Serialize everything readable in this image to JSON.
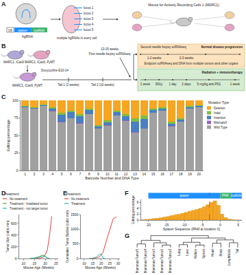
{
  "diagrams": {
    "A": {
      "panel": "A",
      "promoter": "U6",
      "spacer": "spacer",
      "scaffold": "scaffold",
      "construct": "hgRNA",
      "loci": [
        "locus 1",
        "locus 2",
        "locus 3",
        "locus 4",
        "locus 5"
      ],
      "cells": "multiple hgRNAs in every cell",
      "mouse": "Mouse for Actively Recording Cells 1 (MARC1)"
    },
    "B": {
      "panel": "B",
      "parents": [
        "MARC1, iCas9",
        "MARC1, iCas9, PyMT"
      ],
      "offspring": "MARC1, iCas9, PyMT",
      "induction": "Doxycycline E10-14",
      "tails": [
        "Tail 1 (2 weeks)",
        "Tail 2 (10 weeks)"
      ],
      "biopsy_age": "13-15 weeks",
      "biopsy": "First needle biopsy scRNAseq",
      "normal": {
        "title": "Normal disease progression",
        "second": "Second needle biopsy scRNAseq",
        "intervals": [
          "1-2 weeks",
          "2-3 weeks"
        ],
        "endpoint": "Endpoint scRNAseq and DNA from multiple tumors and other organs"
      },
      "treated": {
        "title": "Radiation + immunotherapy",
        "steps": [
          "1 week",
          "30Gy",
          "1 day",
          "2 days",
          "5 mg/kg anti-PD1",
          "1 week"
        ]
      }
    }
  },
  "chart_data": [
    {
      "panel": "C",
      "type": "bar",
      "stacked": true,
      "x_label": "Barcode Number and DNA Type",
      "y_label": "Editing percentage",
      "legend_title": "Mutation Type",
      "legend": "right",
      "categories": [
        "1",
        "2",
        "3",
        "4",
        "5",
        "6",
        "7",
        "8",
        "9",
        "10",
        "11",
        "12",
        "13",
        "14",
        "15",
        "16",
        "17",
        "18",
        "19",
        "20"
      ],
      "series": [
        {
          "name": "Deletion",
          "color": "#f5a623",
          "values": [
            8,
            10,
            6,
            10,
            18,
            15,
            20,
            12,
            35,
            28,
            15,
            20,
            25,
            22,
            12,
            10,
            30,
            25,
            8,
            7
          ]
        },
        {
          "name": "Indel",
          "color": "#7fbf3f",
          "values": [
            1,
            1,
            1,
            2,
            3,
            2,
            3,
            2,
            2,
            3,
            2,
            3,
            5,
            4,
            2,
            2,
            3,
            2,
            2,
            1
          ]
        },
        {
          "name": "Insertion",
          "color": "#4a7fc1",
          "values": [
            1,
            1,
            1,
            3,
            9,
            8,
            9,
            6,
            3,
            4,
            5,
            5,
            15,
            14,
            4,
            3,
            3,
            3,
            2,
            2
          ]
        },
        {
          "name": "Mismatch",
          "color": "#9467bd",
          "values": [
            0,
            0,
            0,
            1,
            1,
            0,
            1,
            0,
            0,
            1,
            0,
            1,
            1,
            0,
            0,
            0,
            1,
            0,
            0,
            0
          ]
        },
        {
          "name": "Wild Type",
          "color": "#a0a0a0",
          "values": [
            90,
            88,
            92,
            84,
            69,
            75,
            67,
            80,
            60,
            64,
            78,
            71,
            54,
            60,
            82,
            85,
            63,
            70,
            88,
            90
          ]
        }
      ],
      "ylim": [
        0,
        100
      ],
      "yticks": [
        0,
        25,
        50,
        75,
        100
      ]
    },
    {
      "panel": "D",
      "type": "line",
      "x_label": "Mouse Age (Weeks)",
      "y_label": "Tumor Size (cubic mm)",
      "legend_title": "Treatment",
      "legend": "top",
      "series": [
        {
          "name": "No treatment",
          "color": "#e8403a",
          "x": [
            13,
            15,
            17,
            19,
            20,
            21,
            22,
            23
          ],
          "values": [
            0,
            0,
            5,
            20,
            60,
            150,
            400,
            720
          ]
        },
        {
          "name": "Treatment - irradiated tumor",
          "color": "#5aab3c",
          "x": [
            13,
            15,
            17,
            19,
            20,
            21,
            22
          ],
          "values": [
            0,
            10,
            30,
            60,
            40,
            10,
            0
          ]
        },
        {
          "name": "Treatment - not target tumor",
          "color": "#2bb3b1",
          "x": [
            13,
            15,
            17,
            19,
            20,
            21,
            22
          ],
          "values": [
            0,
            5,
            20,
            45,
            30,
            5,
            0
          ]
        }
      ],
      "xlim": [
        8,
        26
      ],
      "xticks": [
        10,
        15,
        20,
        25
      ],
      "ylim": [
        0,
        750
      ],
      "yticks": [
        0,
        200,
        400,
        600
      ]
    },
    {
      "panel": "E",
      "type": "line",
      "x_label": "Mouse Age (Weeks)",
      "y_label": "Cumulative Tumor Burden (cubic mm)",
      "legend_title": "Treatment",
      "legend": "top",
      "series": [
        {
          "name": "No treatment",
          "color": "#e8403a",
          "x": [
            13,
            15,
            17,
            19,
            21,
            23,
            25,
            27,
            29
          ],
          "values": [
            0,
            5,
            20,
            60,
            200,
            600,
            1000,
            1350,
            1420
          ]
        },
        {
          "name": "Treatment",
          "color": "#2bb3b1",
          "x": [
            13,
            15,
            17,
            19,
            20,
            21,
            22
          ],
          "values": [
            0,
            10,
            50,
            140,
            150,
            20,
            0
          ]
        }
      ],
      "xlim": [
        8,
        31
      ],
      "xticks": [
        10,
        15,
        20,
        25,
        30
      ],
      "ylim": [
        0,
        1500
      ],
      "yticks": [
        0,
        500,
        1000,
        1500
      ]
    },
    {
      "panel": "F",
      "type": "histogram",
      "x_label": "Spacer Sequence (PAM at location 0)",
      "y_label": "Editing percentage",
      "color": "#f5a623",
      "bins": [
        -22,
        -21,
        -20,
        -19,
        -18,
        -17,
        -16,
        -15,
        -14,
        -13,
        -12,
        -11,
        -10,
        -9,
        -8,
        -7,
        -6,
        -5,
        -4,
        -3,
        -2,
        -1,
        0,
        1,
        2,
        3,
        4,
        5,
        6
      ],
      "values": [
        0.1,
        0.2,
        0.3,
        0.5,
        0.6,
        0.8,
        1.0,
        1.2,
        1.5,
        1.8,
        2.0,
        2.3,
        2.6,
        3.0,
        3.3,
        3.6,
        4.0,
        4.5,
        5.2,
        6.0,
        6.5,
        5.0,
        2.0,
        0.8,
        0.3,
        0.1,
        0.05,
        0
      ],
      "cut_site": -3,
      "regions": [
        {
          "label": "spacer",
          "start": -20,
          "end": 0,
          "color": "#1e90ff"
        },
        {
          "label": "PAM",
          "start": 0,
          "end": 3,
          "color": "#3cb371"
        },
        {
          "label": "scaffold",
          "start": 3,
          "end": 6,
          "color": "#1e90ff"
        }
      ],
      "xlim": [
        -22,
        6
      ],
      "xticks": [
        -20,
        -15,
        -10,
        -5,
        0,
        5
      ],
      "ylim": [
        0,
        7
      ],
      "yticks": [
        0,
        2,
        4,
        6
      ]
    },
    {
      "panel": "G",
      "type": "dendrogram",
      "tick_labels": "x",
      "categories": [
        "MammaryTumor5",
        "MammaryTumor4",
        "MammaryTumor3",
        "MammaryTumor1",
        "MammaryTumor2",
        "Lung",
        "Liver",
        "Kidney",
        "Spleen",
        "Heart",
        "Brain",
        "LymphNode",
        "Tail"
      ],
      "merges": [
        [
          3,
          4,
          1
        ],
        [
          2,
          13,
          2
        ],
        [
          0,
          1,
          1.5
        ],
        [
          15,
          14,
          3
        ],
        [
          5,
          6,
          1.2
        ],
        [
          7,
          8,
          1.0
        ],
        [
          17,
          18,
          2.2
        ],
        [
          9,
          10,
          1.8
        ],
        [
          11,
          12,
          2.0
        ],
        [
          20,
          21,
          3.2
        ],
        [
          19,
          22,
          4
        ],
        [
          16,
          23,
          5
        ]
      ],
      "ylim": [
        0,
        5.2
      ]
    }
  ]
}
